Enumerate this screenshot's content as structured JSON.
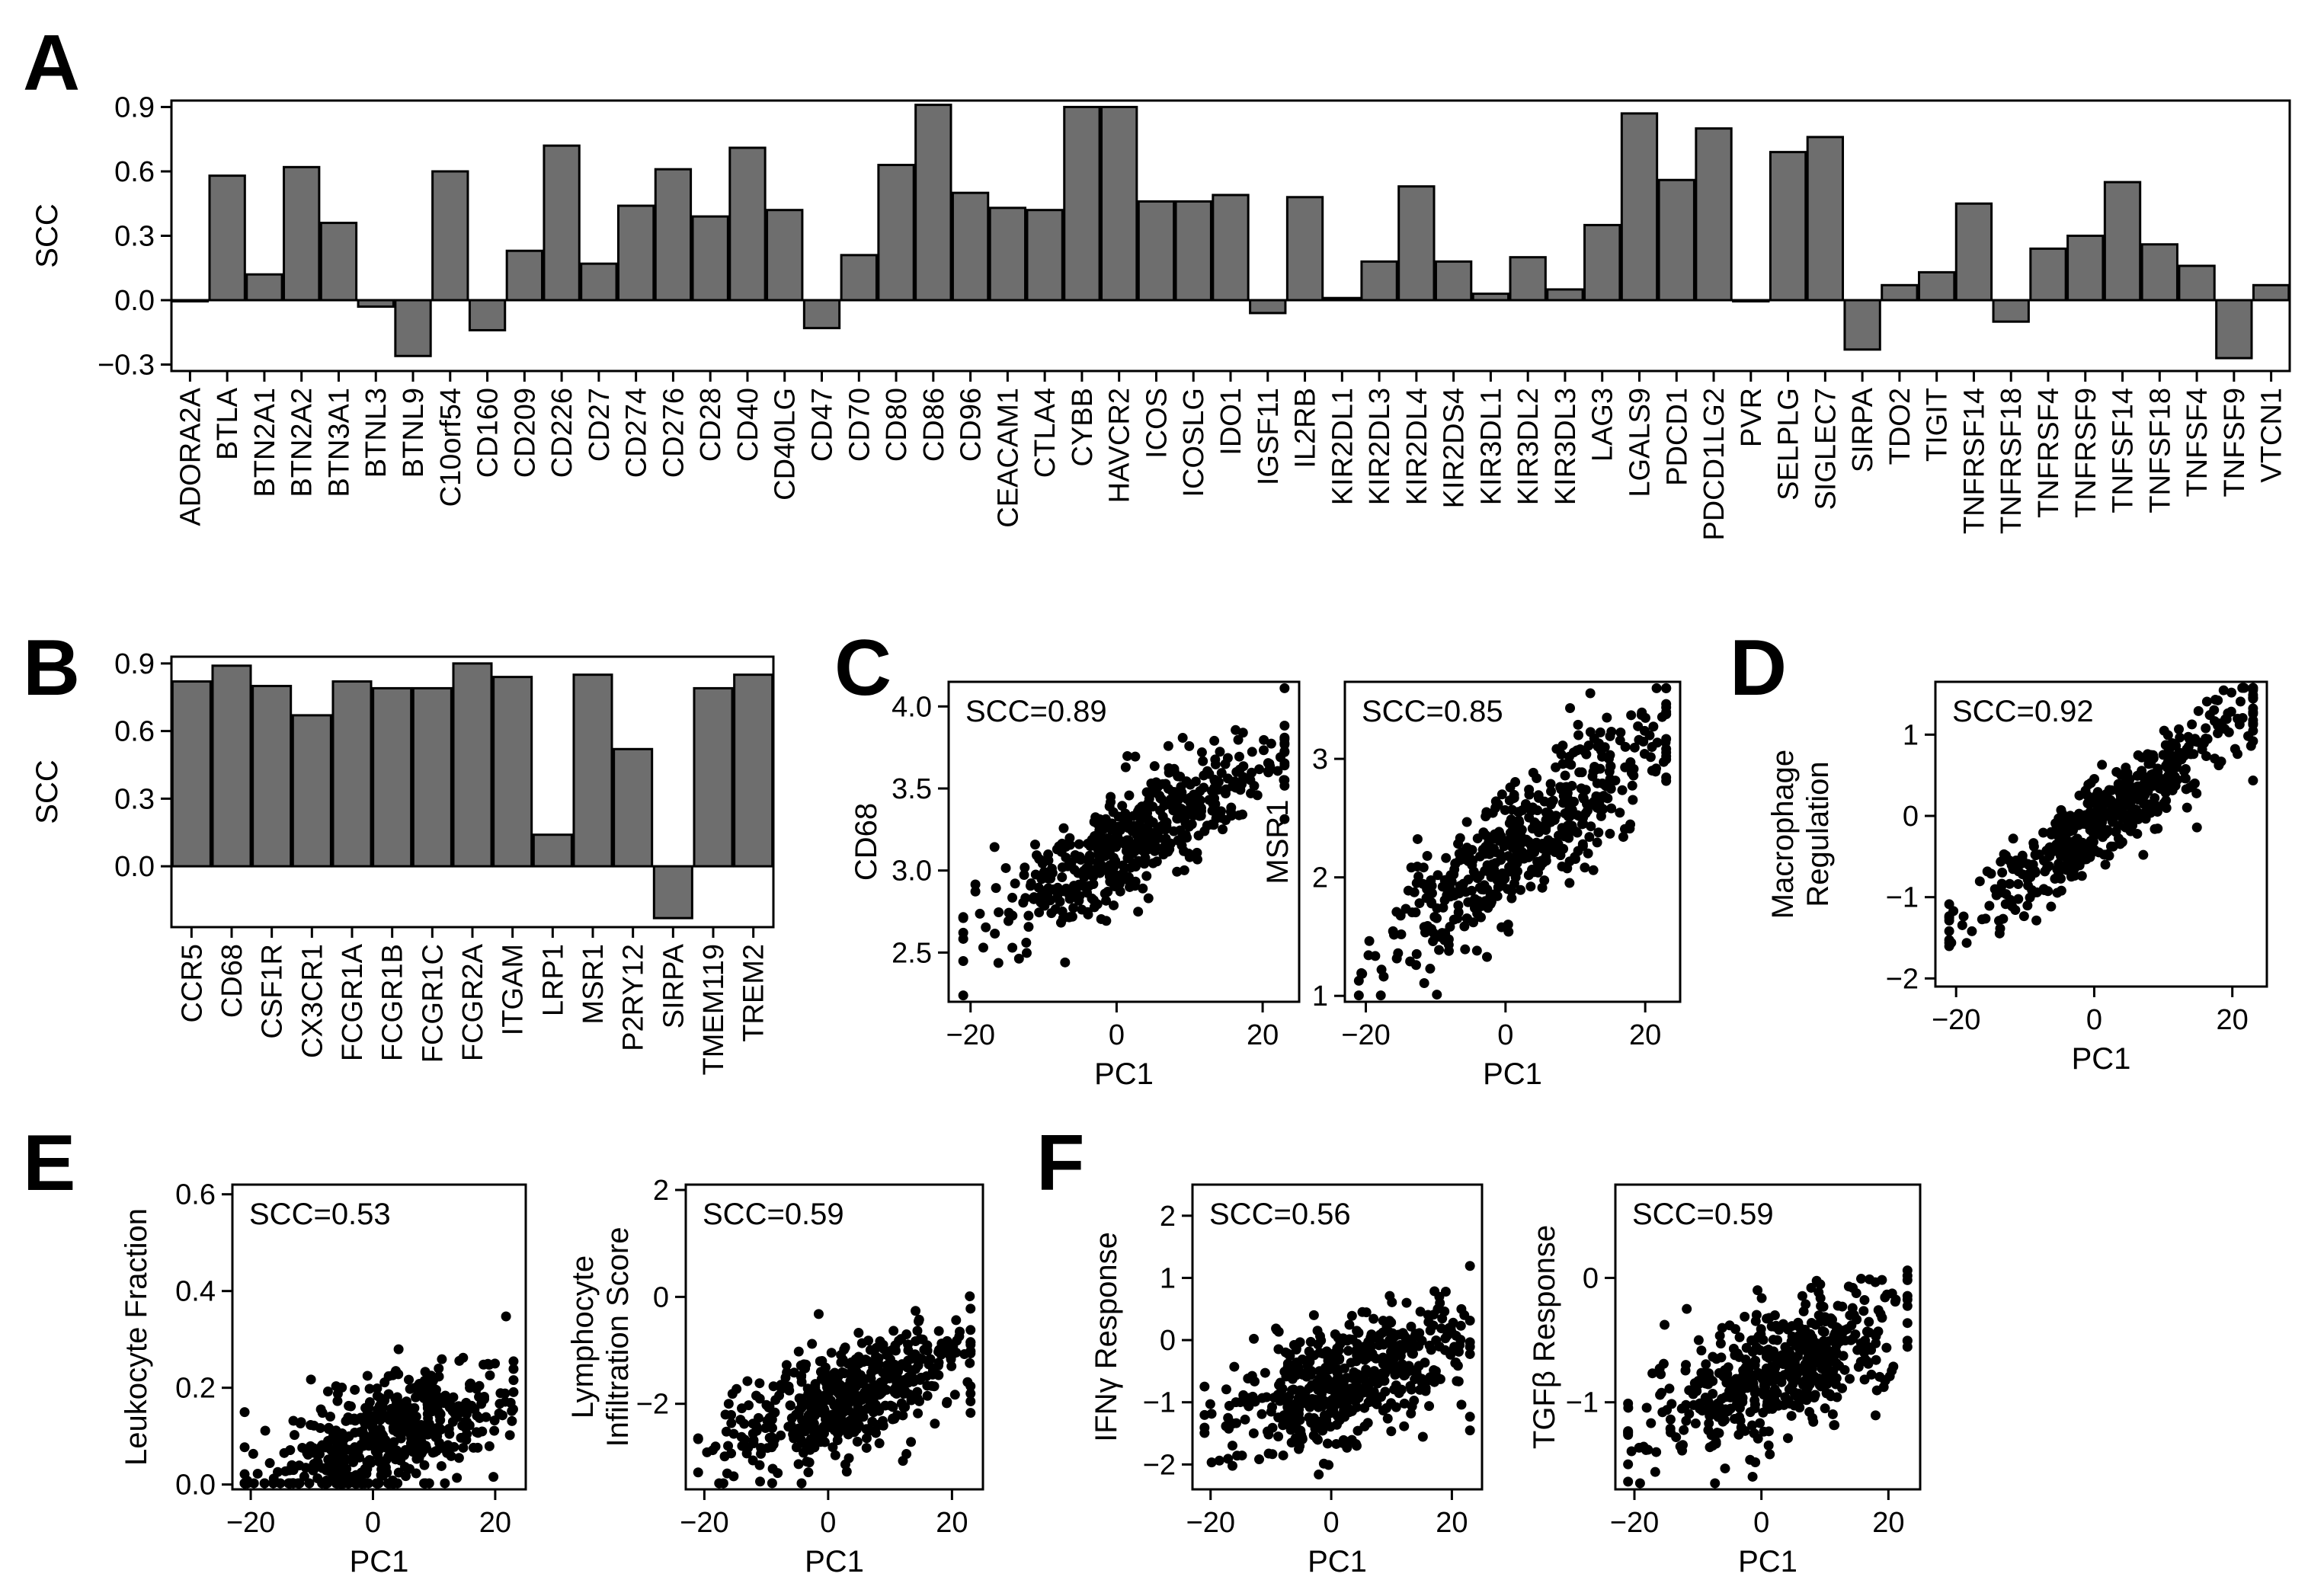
{
  "colors": {
    "bar": "#6e6e6e",
    "point": "#000000",
    "axis": "#000000",
    "background": "#ffffff"
  },
  "chart_data": [
    {
      "id": "A",
      "type": "bar",
      "panel_label": "A",
      "ylabel": "SCC",
      "xlabel": "",
      "ylim": [
        -0.33,
        0.93
      ],
      "yticks": [
        "−0.3",
        "0.0",
        "0.3",
        "0.6",
        "0.9"
      ],
      "ytick_values": [
        -0.3,
        0.0,
        0.3,
        0.6,
        0.9
      ],
      "categories": [
        "ADORA2A",
        "BTLA",
        "BTN2A1",
        "BTN2A2",
        "BTN3A1",
        "BTNL3",
        "BTNL9",
        "C10orf54",
        "CD160",
        "CD209",
        "CD226",
        "CD27",
        "CD274",
        "CD276",
        "CD28",
        "CD40",
        "CD40LG",
        "CD47",
        "CD70",
        "CD80",
        "CD86",
        "CD96",
        "CEACAM1",
        "CTLA4",
        "CYBB",
        "HAVCR2",
        "ICOS",
        "ICOSLG",
        "IDO1",
        "IGSF11",
        "IL2RB",
        "KIR2DL1",
        "KIR2DL3",
        "KIR2DL4",
        "KIR2DS4",
        "KIR3DL1",
        "KIR3DL2",
        "KIR3DL3",
        "LAG3",
        "LGALS9",
        "PDCD1",
        "PDCD1LG2",
        "PVR",
        "SELPLG",
        "SIGLEC7",
        "SIRPA",
        "TDO2",
        "TIGIT",
        "TNFRSF14",
        "TNFRSF18",
        "TNFRSF4",
        "TNFRSF9",
        "TNFSF14",
        "TNFSF18",
        "TNFSF4",
        "TNFSF9",
        "VTCN1"
      ],
      "values": [
        0.0,
        0.58,
        0.12,
        0.62,
        0.36,
        -0.03,
        -0.26,
        0.6,
        -0.14,
        0.23,
        0.72,
        0.17,
        0.44,
        0.61,
        0.39,
        0.71,
        0.42,
        -0.13,
        0.21,
        0.63,
        0.91,
        0.5,
        0.43,
        0.42,
        0.9,
        0.9,
        0.46,
        0.46,
        0.49,
        -0.06,
        0.48,
        0.01,
        0.18,
        0.53,
        0.18,
        0.03,
        0.2,
        0.05,
        0.35,
        0.87,
        0.56,
        0.8,
        0.0,
        0.69,
        0.76,
        -0.23,
        0.07,
        0.13,
        0.45,
        -0.1,
        0.24,
        0.3,
        0.55,
        0.26,
        0.16,
        -0.27,
        0.07
      ]
    },
    {
      "id": "B",
      "type": "bar",
      "panel_label": "B",
      "ylabel": "SCC",
      "xlabel": "",
      "ylim": [
        -0.27,
        0.93
      ],
      "yticks": [
        "0.0",
        "0.3",
        "0.6",
        "0.9"
      ],
      "ytick_values": [
        0.0,
        0.3,
        0.6,
        0.9
      ],
      "categories": [
        "CCR5",
        "CD68",
        "CSF1R",
        "CX3CR1",
        "FCGR1A",
        "FCGR1B",
        "FCGR1C",
        "FCGR2A",
        "ITGAM",
        "LRP1",
        "MSR1",
        "P2RY12",
        "SIRPA",
        "TMEM119",
        "TREM2"
      ],
      "values": [
        0.82,
        0.89,
        0.8,
        0.67,
        0.82,
        0.79,
        0.79,
        0.9,
        0.84,
        0.14,
        0.85,
        0.52,
        -0.23,
        0.79,
        0.85
      ]
    },
    {
      "id": "C1",
      "type": "scatter",
      "panel_label": "C",
      "annotation": "SCC=0.89",
      "xlabel": "PC1",
      "ylabel": "CD68",
      "xlim": [
        -23,
        25
      ],
      "ylim": [
        2.2,
        4.15
      ],
      "xticks": [
        "−20",
        "0",
        "20"
      ],
      "xtick_values": [
        -20,
        0,
        20
      ],
      "yticks": [
        "2.5",
        "3.0",
        "3.5",
        "4.0"
      ],
      "ytick_values": [
        2.5,
        3.0,
        3.5,
        4.0
      ],
      "trend": {
        "intercept": 3.12,
        "slope": 0.026,
        "noise": 0.17,
        "x_center": 3,
        "x_spread": 10
      }
    },
    {
      "id": "C2",
      "type": "scatter",
      "panel_label": "",
      "annotation": "SCC=0.85",
      "xlabel": "PC1",
      "ylabel": "MSR1",
      "xlim": [
        -23,
        25
      ],
      "ylim": [
        0.95,
        3.65
      ],
      "xticks": [
        "−20",
        "0",
        "20"
      ],
      "xtick_values": [
        -20,
        0,
        20
      ],
      "yticks": [
        "1",
        "2",
        "3"
      ],
      "ytick_values": [
        1,
        2,
        3
      ],
      "trend": {
        "intercept": 2.2,
        "slope": 0.045,
        "noise": 0.28,
        "x_center": 3,
        "x_spread": 10
      }
    },
    {
      "id": "D",
      "type": "scatter",
      "panel_label": "D",
      "annotation": "SCC=0.92",
      "xlabel": "PC1",
      "ylabel": "Macrophage Regulation",
      "ylabel_lines": [
        "Macrophage",
        "Regulation"
      ],
      "xlim": [
        -23,
        25
      ],
      "ylim": [
        -2.1,
        1.65
      ],
      "xticks": [
        "−20",
        "0",
        "20"
      ],
      "xtick_values": [
        -20,
        0,
        20
      ],
      "yticks": [
        "−2",
        "−1",
        "0",
        "1"
      ],
      "ytick_values": [
        -2,
        -1,
        0,
        1
      ],
      "trend": {
        "intercept": -0.1,
        "slope": 0.058,
        "noise": 0.27,
        "x_center": 3,
        "x_spread": 10
      }
    },
    {
      "id": "E1",
      "type": "scatter",
      "panel_label": "E",
      "annotation": "SCC=0.53",
      "xlabel": "PC1",
      "ylabel": "Leukocyte Fraction",
      "xlim": [
        -23,
        25
      ],
      "ylim": [
        -0.01,
        0.62
      ],
      "xticks": [
        "−20",
        "0",
        "20"
      ],
      "xtick_values": [
        -20,
        0,
        20
      ],
      "yticks": [
        "0.0",
        "0.2",
        "0.4",
        "0.6"
      ],
      "ytick_values": [
        0.0,
        0.2,
        0.4,
        0.6
      ],
      "trend": {
        "intercept": 0.09,
        "slope": 0.0045,
        "noise": 0.06,
        "x_center": 3,
        "x_spread": 10
      }
    },
    {
      "id": "E2",
      "type": "scatter",
      "panel_label": "",
      "annotation": "SCC=0.59",
      "xlabel": "PC1",
      "ylabel": "Lymphocyte Infiltration Score",
      "ylabel_lines": [
        "Lymphocyte",
        "Infiltration Score"
      ],
      "xlim": [
        -23,
        25
      ],
      "ylim": [
        -3.6,
        2.1
      ],
      "xticks": [
        "−20",
        "0",
        "20"
      ],
      "xtick_values": [
        -20,
        0,
        20
      ],
      "yticks": [
        "−2",
        "0",
        "2"
      ],
      "ytick_values": [
        -2,
        0,
        2
      ],
      "trend": {
        "intercept": -2.0,
        "slope": 0.04,
        "noise": 0.5,
        "x_center": 3,
        "x_spread": 10
      }
    },
    {
      "id": "F1",
      "type": "scatter",
      "panel_label": "F",
      "annotation": "SCC=0.56",
      "xlabel": "PC1",
      "ylabel": "IFNγ Response",
      "xlim": [
        -23,
        25
      ],
      "ylim": [
        -2.4,
        2.5
      ],
      "xticks": [
        "−20",
        "0",
        "20"
      ],
      "xtick_values": [
        -20,
        0,
        20
      ],
      "yticks": [
        "−2",
        "−1",
        "0",
        "1",
        "2"
      ],
      "ytick_values": [
        -2,
        -1,
        0,
        1,
        2
      ],
      "trend": {
        "intercept": -0.7,
        "slope": 0.035,
        "noise": 0.5,
        "x_center": 3,
        "x_spread": 10
      }
    },
    {
      "id": "F2",
      "type": "scatter",
      "panel_label": "",
      "annotation": "SCC=0.59",
      "xlabel": "PC1",
      "ylabel": "TGFβ Response",
      "xlim": [
        -23,
        25
      ],
      "ylim": [
        -1.7,
        0.75
      ],
      "xticks": [
        "−20",
        "0",
        "20"
      ],
      "xtick_values": [
        -20,
        0,
        20
      ],
      "yticks": [
        "−1",
        "0"
      ],
      "ytick_values": [
        -1,
        0
      ],
      "trend": {
        "intercept": -0.8,
        "slope": 0.02,
        "noise": 0.25,
        "x_center": 3,
        "x_spread": 10
      }
    }
  ]
}
